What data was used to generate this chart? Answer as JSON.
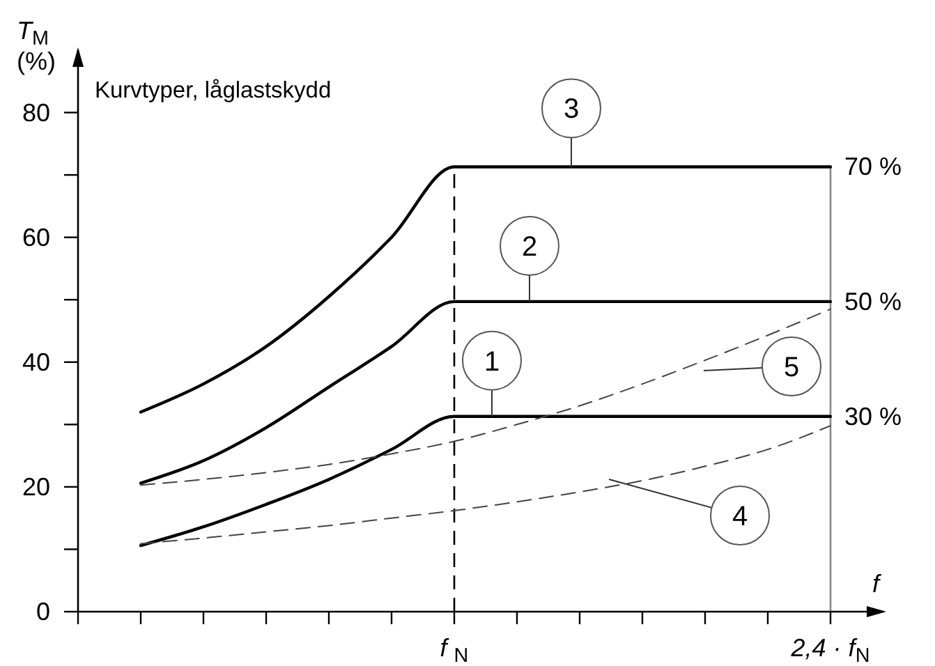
{
  "chart_data": {
    "type": "line",
    "title": "Kurvtyper, låglastskydd",
    "xlabel": "f",
    "ylabel": "T$_{M}$ (%)",
    "categories": [
      null,
      null,
      null,
      null,
      null,
      null,
      "f $_{N}$",
      null,
      null,
      null,
      null,
      null,
      "2,4 · f$_{N}$"
    ],
    "ylim": [
      0,
      90
    ],
    "yticks": [
      0,
      {
        "value": 10,
        "label": null
      },
      20,
      {
        "value": 30,
        "label": null
      },
      40,
      {
        "value": 50,
        "label": null
      },
      60,
      {
        "value": 70,
        "label": null
      },
      80
    ],
    "marker": "none",
    "series": [
      {
        "color": "#000000",
        "values": [
          null,
          10.6,
          13.6,
          17.2,
          21.2,
          26,
          31.3,
          31.3,
          31.3,
          31.3,
          31.3,
          31.3,
          31.3
        ]
      },
      {
        "color": "#000000",
        "values": [
          null,
          20.6,
          24.2,
          29.5,
          36,
          42.5,
          49.7,
          49.7,
          49.7,
          49.7,
          49.7,
          49.7,
          49.7
        ]
      },
      {
        "color": "#000000",
        "values": [
          null,
          32,
          36.5,
          42.5,
          50.5,
          60,
          71.3,
          71.3,
          71.3,
          71.3,
          71.3,
          71.3,
          71.3
        ]
      },
      {
        "color": "#444444",
        "line_style": "dashed",
        "values": [
          null,
          10.9,
          11.8,
          12.8,
          13.8,
          15,
          16.2,
          17.6,
          19.2,
          21,
          23.3,
          26,
          29.8
        ]
      },
      {
        "color": "#444444",
        "line_style": "dashed",
        "values": [
          null,
          20.3,
          21.2,
          22.3,
          23.6,
          25.3,
          27.3,
          30,
          33,
          36.5,
          40.3,
          44.3,
          48.5
        ]
      }
    ],
    "ref_lines": [
      {
        "axis": "x",
        "value": "f $_{N}$",
        "line_style": "dashed",
        "color": "#000000"
      },
      {
        "axis": "x",
        "value": "2,4 · f$_{N}$",
        "color": "#888888"
      }
    ],
    "annotations": [
      {
        "text": "1",
        "y": 31.3
      },
      {
        "text": "2",
        "y": 49.7
      },
      {
        "text": "3",
        "y": 71.3
      },
      "4",
      "5",
      {
        "text": "30 %",
        "x": "2,4 · f$_{N}$",
        "y": 31.3
      },
      {
        "text": "50 %",
        "x": "2,4 · f$_{N}$",
        "y": 49.7
      },
      {
        "text": "70 %",
        "x": "2,4 · f$_{N}$",
        "y": 71.3
      }
    ]
  }
}
